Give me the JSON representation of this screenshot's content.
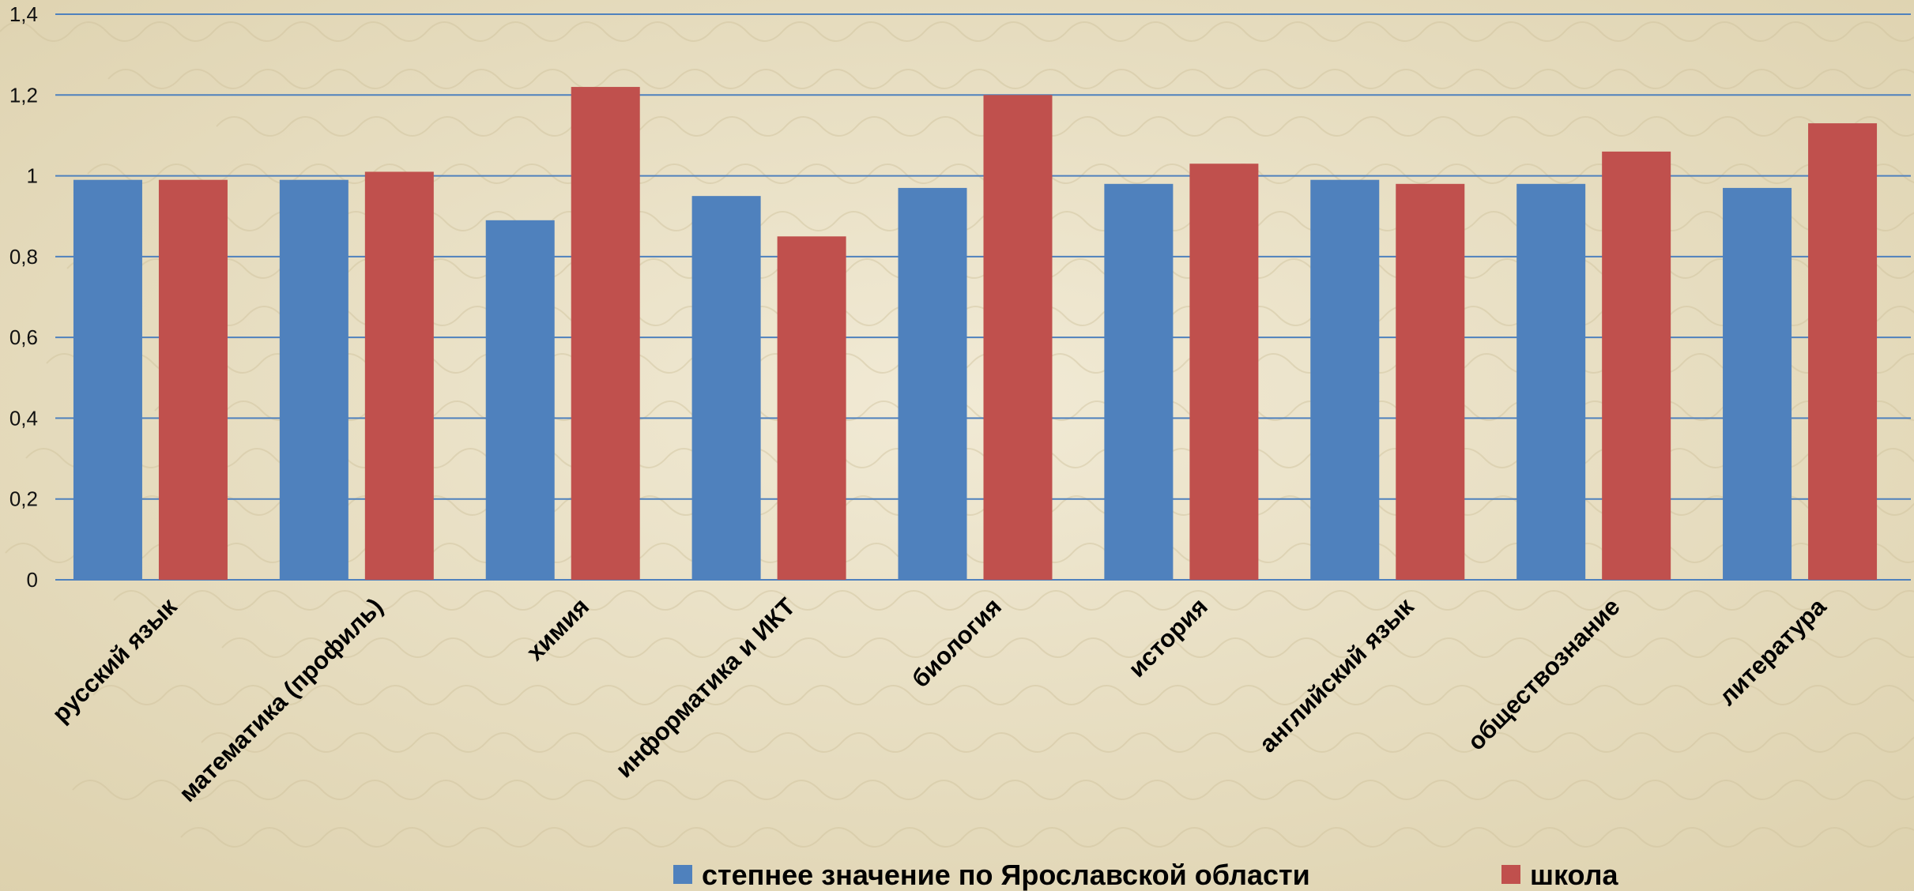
{
  "colors": {
    "series_1": "#4f81bd",
    "series_2": "#c0504d",
    "gridline": "#4f81bd",
    "background": "#ebe3cc"
  },
  "chart_data": {
    "type": "bar",
    "title": "",
    "xlabel": "",
    "ylabel": "",
    "ylim": [
      0,
      1.4
    ],
    "yticks": [
      "0",
      "0,2",
      "0,4",
      "0,6",
      "0,8",
      "1",
      "1,2",
      "1,4"
    ],
    "grid": true,
    "legend_position": "bottom",
    "categories": [
      "русский язык",
      "математика (профиль)",
      "химия",
      "информатика и ИКТ",
      "биология",
      "история",
      "английский язык",
      "обществознание",
      "литература"
    ],
    "series": [
      {
        "name": "степнее значение по Ярославской области",
        "values": [
          0.99,
          0.99,
          0.89,
          0.95,
          0.97,
          0.98,
          0.99,
          0.98,
          0.97
        ]
      },
      {
        "name": "школа",
        "values": [
          0.99,
          1.01,
          1.22,
          0.85,
          1.2,
          1.03,
          0.98,
          1.06,
          1.13
        ]
      }
    ]
  }
}
